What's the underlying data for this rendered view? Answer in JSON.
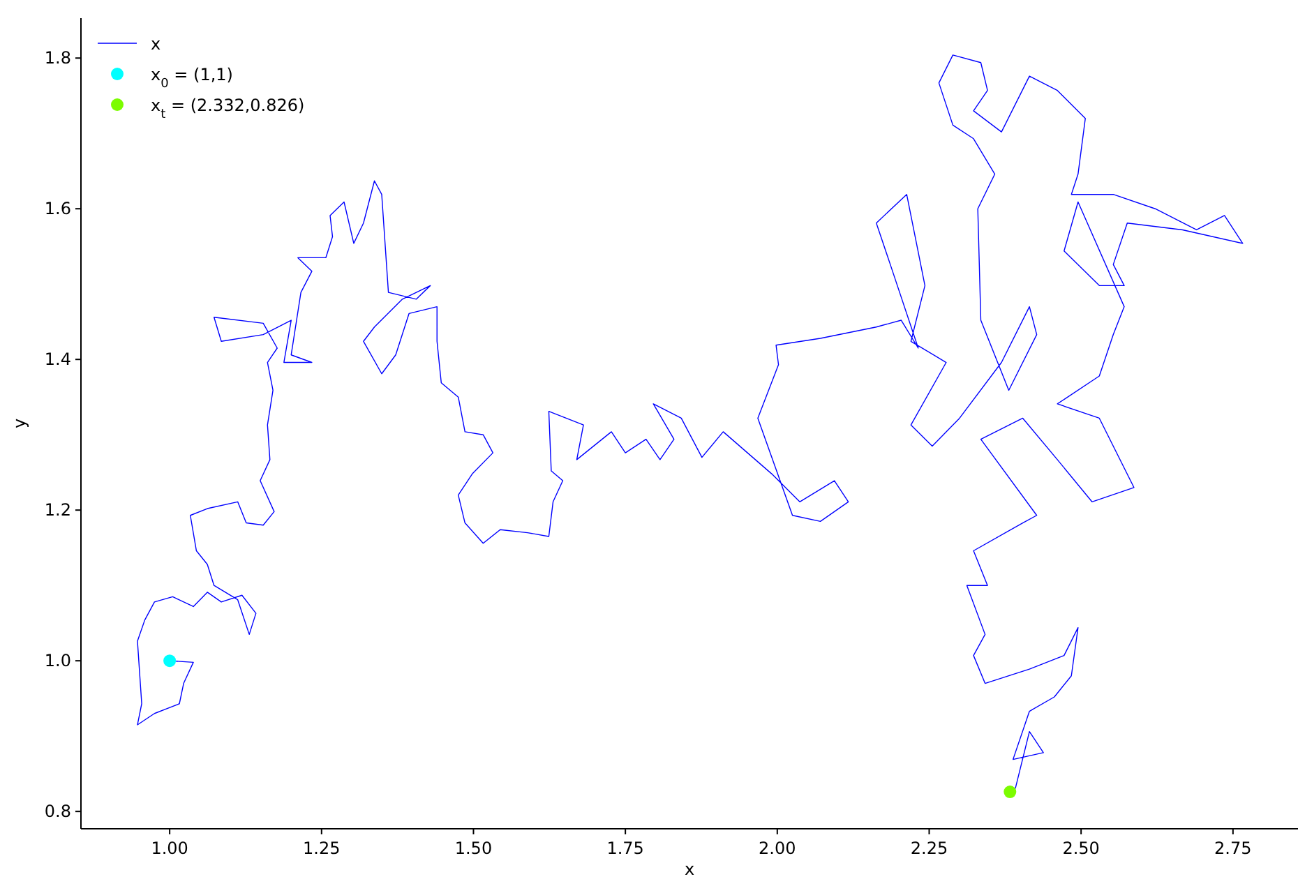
{
  "chart_data": {
    "type": "line",
    "xlabel": "x",
    "ylabel": "y",
    "xlim": [
      0.854,
      2.857
    ],
    "ylim": [
      0.777,
      1.853
    ],
    "xticks": [
      {
        "value": 1,
        "label": "1.00"
      },
      {
        "value": 1.25,
        "label": "1.25"
      },
      {
        "value": 1.5,
        "label": "1.50"
      },
      {
        "value": 1.75,
        "label": "1.75"
      },
      {
        "value": 2,
        "label": "2.00"
      },
      {
        "value": 2.25,
        "label": "2.25"
      },
      {
        "value": 2.5,
        "label": "2.50"
      },
      {
        "value": 2.75,
        "label": "2.75"
      }
    ],
    "yticks": [
      {
        "value": 0.8,
        "label": "0.8"
      },
      {
        "value": 1,
        "label": "1.0"
      },
      {
        "value": 1.2,
        "label": "1.2"
      },
      {
        "value": 1.4,
        "label": "1.4"
      },
      {
        "value": 1.6,
        "label": "1.6"
      },
      {
        "value": 1.8,
        "label": "1.8"
      }
    ],
    "grid": false,
    "legend": "top left",
    "series": [
      {
        "name": "x",
        "color": "#0000ff",
        "marker": "none",
        "line_style": "solid",
        "x": [
          1.0,
          1.039,
          1.023,
          1.016,
          0.975,
          0.947,
          0.954,
          0.947,
          0.959,
          0.975,
          1.005,
          1.039,
          1.062,
          1.085,
          1.119,
          1.142,
          1.131,
          1.112,
          1.073,
          1.062,
          1.044,
          1.034,
          1.062,
          1.112,
          1.126,
          1.154,
          1.172,
          1.149,
          1.165,
          1.161,
          1.17,
          1.161,
          1.177,
          1.154,
          1.073,
          1.085,
          1.154,
          1.2,
          1.188,
          1.234,
          1.2,
          1.216,
          1.234,
          1.211,
          1.257,
          1.268,
          1.264,
          1.287,
          1.303,
          1.319,
          1.337,
          1.349,
          1.36,
          1.406,
          1.429,
          1.383,
          1.337,
          1.319,
          1.349,
          1.372,
          1.394,
          1.44,
          1.44,
          1.447,
          1.475,
          1.486,
          1.516,
          1.532,
          1.498,
          1.475,
          1.486,
          1.516,
          1.544,
          1.589,
          1.624,
          1.631,
          1.647,
          1.628,
          1.624,
          1.681,
          1.67,
          1.727,
          1.75,
          1.784,
          1.807,
          1.83,
          1.796,
          1.842,
          1.876,
          1.911,
          1.991,
          2.037,
          2.094,
          2.117,
          2.071,
          2.025,
          1.968,
          2.002,
          1.998,
          2.071,
          2.163,
          2.204,
          2.232,
          2.186,
          2.163,
          2.213,
          2.243,
          2.22,
          2.278,
          2.22,
          2.255,
          2.3,
          2.369,
          2.415,
          2.427,
          2.381,
          2.335,
          2.33,
          2.358,
          2.323,
          2.289,
          2.266,
          2.289,
          2.335,
          2.346,
          2.323,
          2.369,
          2.415,
          2.461,
          2.507,
          2.495,
          2.484,
          2.553,
          2.622,
          2.69,
          2.736,
          2.766,
          2.667,
          2.576,
          2.553,
          2.571,
          2.53,
          2.472,
          2.495,
          2.571,
          2.553,
          2.53,
          2.461,
          2.53,
          2.587,
          2.518,
          2.461,
          2.404,
          2.335,
          2.427,
          2.404,
          2.323,
          2.346,
          2.312,
          2.342,
          2.323,
          2.342,
          2.415,
          2.472,
          2.495,
          2.484,
          2.456,
          2.415,
          2.388,
          2.438,
          2.415,
          2.392,
          2.383
        ],
        "values": [
          1.0,
          0.998,
          0.97,
          0.943,
          0.93,
          0.915,
          0.943,
          1.026,
          1.054,
          1.078,
          1.085,
          1.072,
          1.091,
          1.078,
          1.087,
          1.063,
          1.035,
          1.081,
          1.1,
          1.128,
          1.146,
          1.193,
          1.202,
          1.211,
          1.183,
          1.18,
          1.198,
          1.239,
          1.267,
          1.313,
          1.359,
          1.396,
          1.415,
          1.448,
          1.456,
          1.424,
          1.433,
          1.452,
          1.396,
          1.396,
          1.406,
          1.489,
          1.517,
          1.535,
          1.535,
          1.563,
          1.591,
          1.609,
          1.554,
          1.581,
          1.637,
          1.619,
          1.489,
          1.48,
          1.498,
          1.48,
          1.443,
          1.424,
          1.381,
          1.406,
          1.461,
          1.47,
          1.424,
          1.369,
          1.35,
          1.304,
          1.3,
          1.276,
          1.248,
          1.22,
          1.183,
          1.156,
          1.174,
          1.17,
          1.165,
          1.211,
          1.239,
          1.252,
          1.331,
          1.313,
          1.267,
          1.304,
          1.276,
          1.294,
          1.267,
          1.294,
          1.341,
          1.322,
          1.27,
          1.304,
          1.248,
          1.211,
          1.239,
          1.211,
          1.185,
          1.193,
          1.322,
          1.393,
          1.419,
          1.428,
          1.443,
          1.452,
          1.415,
          1.526,
          1.581,
          1.619,
          1.498,
          1.424,
          1.396,
          1.313,
          1.285,
          1.322,
          1.396,
          1.47,
          1.433,
          1.359,
          1.452,
          1.6,
          1.646,
          1.693,
          1.711,
          1.767,
          1.804,
          1.794,
          1.757,
          1.73,
          1.702,
          1.776,
          1.757,
          1.72,
          1.646,
          1.619,
          1.619,
          1.6,
          1.572,
          1.591,
          1.554,
          1.572,
          1.581,
          1.526,
          1.498,
          1.498,
          1.544,
          1.609,
          1.47,
          1.433,
          1.378,
          1.341,
          1.322,
          1.23,
          1.211,
          1.267,
          1.322,
          1.294,
          1.193,
          1.183,
          1.146,
          1.1,
          1.1,
          1.035,
          1.007,
          0.97,
          0.989,
          1.007,
          1.044,
          0.98,
          0.952,
          0.933,
          0.869,
          0.878,
          0.906,
          0.831,
          0.826
        ]
      },
      {
        "name": "x$_{0}$ = (1,1)",
        "type": "scatter",
        "color": "#00ffff",
        "marker": "circle",
        "x": [
          1
        ],
        "values": [
          1
        ]
      },
      {
        "name": "x$_{t}$ = (2.332,0.826)",
        "type": "scatter",
        "color": "#7cfc00",
        "marker": "circle",
        "x": [
          2.383
        ],
        "values": [
          0.826
        ]
      }
    ]
  }
}
